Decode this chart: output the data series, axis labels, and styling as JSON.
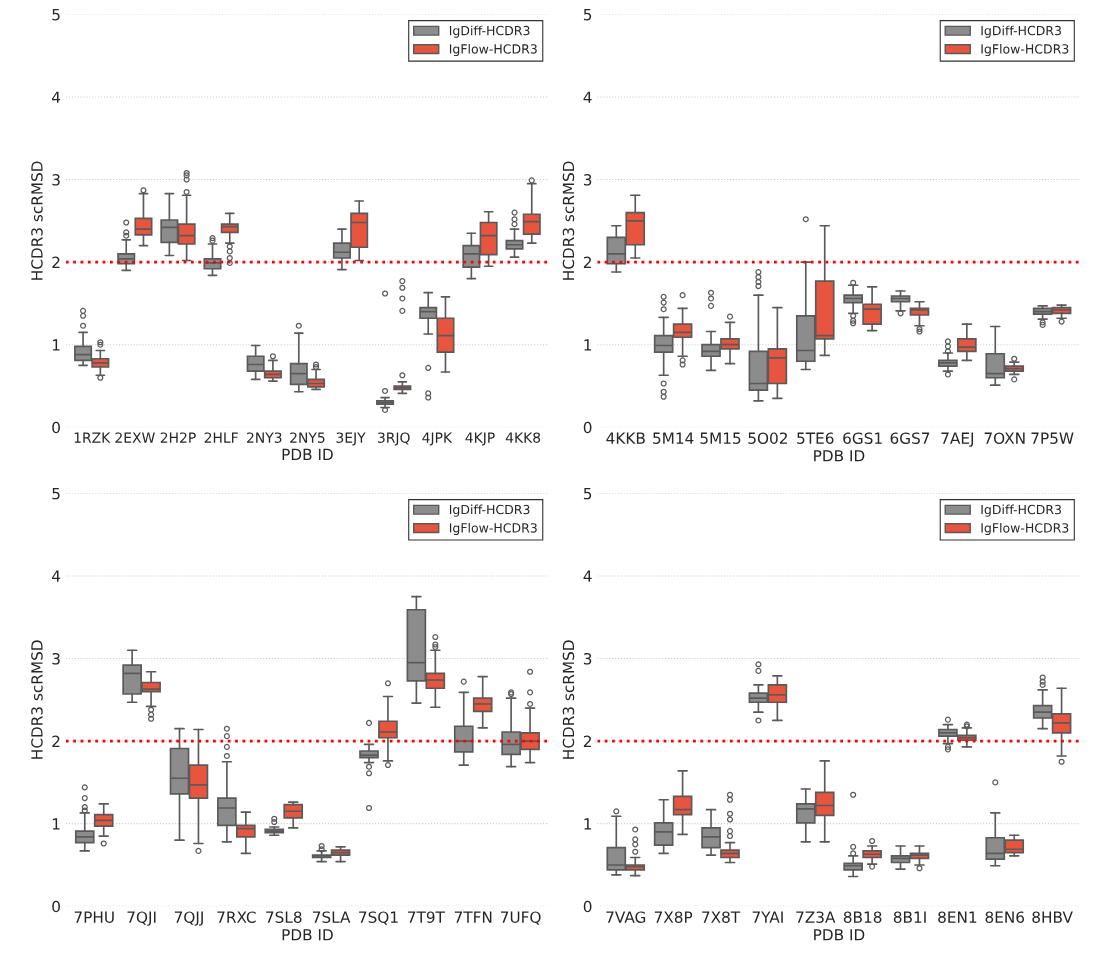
{
  "chart_data": [
    {
      "type": "box",
      "xlabel": "PDB ID",
      "ylabel": "HCDR3 scRMSD",
      "ylim": [
        0,
        5
      ],
      "yticks": [
        0,
        1,
        2,
        3,
        4,
        5
      ],
      "grid": "y",
      "legend": "top right",
      "ref_lines": [
        {
          "axis": "y",
          "value": 2,
          "color": "#ff0000",
          "line_style": "dotted"
        }
      ],
      "categories": [
        "1RZK",
        "2EXW",
        "2H2P",
        "2HLF",
        "2NY3",
        "2NY5",
        "3EJY",
        "3RJQ",
        "4JPK",
        "4KJP",
        "4KK8"
      ],
      "series": [
        {
          "name": "IgDiff-HCDR3",
          "color": "#8c8c8c",
          "boxes": [
            {
              "low": 0.75,
              "q1": 0.81,
              "median": 0.88,
              "q3": 0.98,
              "high": 1.15,
              "outliers": [
                1.41,
                1.35,
                1.23
              ]
            },
            {
              "low": 1.9,
              "q1": 1.98,
              "median": 2.04,
              "q3": 2.1,
              "high": 2.27,
              "outliers": [
                2.48,
                2.36,
                2.32
              ]
            },
            {
              "low": 2.08,
              "q1": 2.24,
              "median": 2.42,
              "q3": 2.51,
              "high": 2.83
            },
            {
              "low": 1.84,
              "q1": 1.92,
              "median": 1.99,
              "q3": 2.04,
              "high": 2.22,
              "outliers": [
                2.29,
                2.26
              ]
            },
            {
              "low": 0.58,
              "q1": 0.68,
              "median": 0.76,
              "q3": 0.86,
              "high": 0.99
            },
            {
              "low": 0.43,
              "q1": 0.52,
              "median": 0.65,
              "q3": 0.77,
              "high": 1.14,
              "outliers": [
                1.23
              ]
            },
            {
              "low": 1.91,
              "q1": 2.05,
              "median": 2.12,
              "q3": 2.23,
              "high": 2.4
            },
            {
              "low": 0.24,
              "q1": 0.28,
              "median": 0.3,
              "q3": 0.32,
              "high": 0.36,
              "outliers": [
                1.62,
                0.44,
                0.21
              ]
            },
            {
              "low": 1.13,
              "q1": 1.32,
              "median": 1.4,
              "q3": 1.45,
              "high": 1.63,
              "outliers": [
                0.72,
                0.41,
                0.36
              ]
            },
            {
              "low": 1.8,
              "q1": 1.94,
              "median": 2.1,
              "q3": 2.2,
              "high": 2.35
            },
            {
              "low": 2.06,
              "q1": 2.16,
              "median": 2.21,
              "q3": 2.26,
              "high": 2.4,
              "outliers": [
                2.6,
                2.52,
                2.46
              ]
            }
          ]
        },
        {
          "name": "IgFlow-HCDR3",
          "color": "#e8553f",
          "boxes": [
            {
              "low": 0.63,
              "q1": 0.73,
              "median": 0.78,
              "q3": 0.83,
              "high": 0.93,
              "outliers": [
                1.03,
                1.0,
                0.6
              ]
            },
            {
              "low": 2.2,
              "q1": 2.33,
              "median": 2.4,
              "q3": 2.53,
              "high": 2.83,
              "outliers": [
                2.87
              ]
            },
            {
              "low": 2.02,
              "q1": 2.22,
              "median": 2.32,
              "q3": 2.46,
              "high": 2.81,
              "outliers": [
                3.08,
                3.05,
                3.0,
                2.85
              ]
            },
            {
              "low": 2.23,
              "q1": 2.36,
              "median": 2.43,
              "q3": 2.46,
              "high": 2.59,
              "outliers": [
                2.19,
                2.13,
                2.05,
                1.99
              ]
            },
            {
              "low": 0.56,
              "q1": 0.6,
              "median": 0.64,
              "q3": 0.68,
              "high": 0.81,
              "outliers": [
                0.86
              ]
            },
            {
              "low": 0.46,
              "q1": 0.49,
              "median": 0.53,
              "q3": 0.58,
              "high": 0.7,
              "outliers": [
                0.76,
                0.73
              ]
            },
            {
              "low": 2.02,
              "q1": 2.18,
              "median": 2.48,
              "q3": 2.59,
              "high": 2.74
            },
            {
              "low": 0.41,
              "q1": 0.46,
              "median": 0.48,
              "q3": 0.5,
              "high": 0.55,
              "outliers": [
                1.77,
                1.69,
                1.56,
                1.41,
                0.63
              ]
            },
            {
              "low": 0.67,
              "q1": 0.91,
              "median": 1.11,
              "q3": 1.32,
              "high": 1.58
            },
            {
              "low": 1.95,
              "q1": 2.09,
              "median": 2.32,
              "q3": 2.48,
              "high": 2.61
            },
            {
              "low": 2.23,
              "q1": 2.34,
              "median": 2.49,
              "q3": 2.58,
              "high": 2.95,
              "outliers": [
                2.99
              ]
            }
          ]
        }
      ]
    },
    {
      "type": "box",
      "xlabel": "PDB ID",
      "ylabel": "HCDR3 scRMSD",
      "ylim": [
        0,
        5
      ],
      "yticks": [
        0,
        1,
        2,
        3,
        4,
        5
      ],
      "grid": "y",
      "legend": "top right",
      "ref_lines": [
        {
          "axis": "y",
          "value": 2,
          "color": "#ff0000",
          "line_style": "dotted"
        }
      ],
      "categories": [
        "4KKB",
        "5M14",
        "5M15",
        "5O02",
        "5TE6",
        "6GS1",
        "6GS7",
        "7AEJ",
        "7OXN",
        "7P5W"
      ],
      "series": [
        {
          "name": "IgDiff-HCDR3",
          "color": "#8c8c8c",
          "boxes": [
            {
              "low": 1.88,
              "q1": 1.98,
              "median": 2.1,
              "q3": 2.3,
              "high": 2.44
            },
            {
              "low": 0.63,
              "q1": 0.91,
              "median": 0.99,
              "q3": 1.11,
              "high": 1.33,
              "outliers": [
                1.58,
                1.51,
                1.43,
                0.53,
                0.43,
                0.37
              ]
            },
            {
              "low": 0.69,
              "q1": 0.86,
              "median": 0.92,
              "q3": 1.0,
              "high": 1.16,
              "outliers": [
                1.63,
                1.56,
                1.47
              ]
            },
            {
              "low": 0.32,
              "q1": 0.45,
              "median": 0.53,
              "q3": 0.92,
              "high": 1.6,
              "outliers": [
                1.88,
                1.82,
                1.76,
                1.71
              ]
            },
            {
              "low": 0.7,
              "q1": 0.8,
              "median": 0.93,
              "q3": 1.35,
              "high": 2.0,
              "outliers": [
                2.52
              ]
            },
            {
              "low": 1.38,
              "q1": 1.51,
              "median": 1.56,
              "q3": 1.6,
              "high": 1.72,
              "outliers": [
                1.75,
                1.35,
                1.29,
                1.26
              ]
            },
            {
              "low": 1.41,
              "q1": 1.52,
              "median": 1.56,
              "q3": 1.59,
              "high": 1.65,
              "outliers": [
                1.38
              ]
            },
            {
              "low": 0.68,
              "q1": 0.74,
              "median": 0.78,
              "q3": 0.81,
              "high": 0.9,
              "outliers": [
                1.04,
                0.98,
                0.92,
                0.64
              ]
            },
            {
              "low": 0.51,
              "q1": 0.6,
              "median": 0.65,
              "q3": 0.89,
              "high": 1.22
            },
            {
              "low": 1.31,
              "q1": 1.37,
              "median": 1.4,
              "q3": 1.44,
              "high": 1.47,
              "outliers": [
                1.27,
                1.24
              ]
            }
          ]
        },
        {
          "name": "IgFlow-HCDR3",
          "color": "#e8553f",
          "boxes": [
            {
              "low": 2.05,
              "q1": 2.21,
              "median": 2.5,
              "q3": 2.6,
              "high": 2.81
            },
            {
              "low": 0.86,
              "q1": 1.09,
              "median": 1.15,
              "q3": 1.25,
              "high": 1.44,
              "outliers": [
                1.6,
                0.81,
                0.76
              ]
            },
            {
              "low": 0.77,
              "q1": 0.95,
              "median": 1.0,
              "q3": 1.07,
              "high": 1.27,
              "outliers": [
                1.34
              ]
            },
            {
              "low": 0.35,
              "q1": 0.53,
              "median": 0.84,
              "q3": 0.95,
              "high": 1.45
            },
            {
              "low": 0.87,
              "q1": 1.07,
              "median": 1.11,
              "q3": 1.77,
              "high": 2.44
            },
            {
              "low": 1.17,
              "q1": 1.25,
              "median": 1.43,
              "q3": 1.49,
              "high": 1.7
            },
            {
              "low": 1.23,
              "q1": 1.36,
              "median": 1.42,
              "q3": 1.44,
              "high": 1.52,
              "outliers": [
                1.19,
                1.16
              ]
            },
            {
              "low": 0.81,
              "q1": 0.92,
              "median": 0.97,
              "q3": 1.07,
              "high": 1.25
            },
            {
              "low": 0.64,
              "q1": 0.68,
              "median": 0.71,
              "q3": 0.74,
              "high": 0.79,
              "outliers": [
                0.83,
                0.58
              ]
            },
            {
              "low": 1.32,
              "q1": 1.38,
              "median": 1.42,
              "q3": 1.45,
              "high": 1.48,
              "outliers": [
                1.28
              ]
            }
          ]
        }
      ]
    },
    {
      "type": "box",
      "xlabel": "PDB ID",
      "ylabel": "HCDR3 scRMSD",
      "ylim": [
        0,
        5
      ],
      "yticks": [
        0,
        1,
        2,
        3,
        4,
        5
      ],
      "grid": "y",
      "legend": "top right",
      "ref_lines": [
        {
          "axis": "y",
          "value": 2,
          "color": "#ff0000",
          "line_style": "dotted"
        }
      ],
      "categories": [
        "7PHU",
        "7QJI",
        "7QJJ",
        "7RXC",
        "7SL8",
        "7SLA",
        "7SQ1",
        "7T9T",
        "7TFN",
        "7UFQ"
      ],
      "series": [
        {
          "name": "IgDiff-HCDR3",
          "color": "#8c8c8c",
          "boxes": [
            {
              "low": 0.67,
              "q1": 0.77,
              "median": 0.84,
              "q3": 0.91,
              "high": 1.13,
              "outliers": [
                1.44,
                1.31,
                1.2,
                1.16
              ]
            },
            {
              "low": 2.47,
              "q1": 2.57,
              "median": 2.82,
              "q3": 2.92,
              "high": 3.1
            },
            {
              "low": 0.8,
              "q1": 1.36,
              "median": 1.55,
              "q3": 1.91,
              "high": 2.15
            },
            {
              "low": 0.78,
              "q1": 0.98,
              "median": 1.19,
              "q3": 1.31,
              "high": 1.75,
              "outliers": [
                2.15,
                2.06,
                1.93,
                1.82
              ]
            },
            {
              "low": 0.86,
              "q1": 0.89,
              "median": 0.91,
              "q3": 0.93,
              "high": 0.96,
              "outliers": [
                1.06,
                1.02
              ]
            },
            {
              "low": 0.54,
              "q1": 0.59,
              "median": 0.61,
              "q3": 0.62,
              "high": 0.67,
              "outliers": [
                0.73,
                0.69
              ]
            },
            {
              "low": 1.74,
              "q1": 1.8,
              "median": 1.83,
              "q3": 1.88,
              "high": 1.96,
              "outliers": [
                2.22,
                1.69,
                1.61,
                1.19
              ]
            },
            {
              "low": 2.46,
              "q1": 2.73,
              "median": 2.95,
              "q3": 3.59,
              "high": 3.75
            },
            {
              "low": 1.71,
              "q1": 1.87,
              "median": 2.0,
              "q3": 2.18,
              "high": 2.59,
              "outliers": [
                2.72
              ]
            },
            {
              "low": 1.69,
              "q1": 1.84,
              "median": 1.96,
              "q3": 2.11,
              "high": 2.52,
              "outliers": [
                2.59,
                2.57
              ]
            }
          ]
        },
        {
          "name": "IgFlow-HCDR3",
          "color": "#e8553f",
          "boxes": [
            {
              "low": 0.85,
              "q1": 0.97,
              "median": 1.04,
              "q3": 1.11,
              "high": 1.24,
              "outliers": [
                0.76
              ]
            },
            {
              "low": 2.42,
              "q1": 2.6,
              "median": 2.63,
              "q3": 2.71,
              "high": 2.84,
              "outliers": [
                2.38,
                2.32,
                2.27
              ]
            },
            {
              "low": 0.76,
              "q1": 1.31,
              "median": 1.47,
              "q3": 1.71,
              "high": 2.14,
              "outliers": [
                0.67
              ]
            },
            {
              "low": 0.64,
              "q1": 0.84,
              "median": 0.94,
              "q3": 0.98,
              "high": 1.14
            },
            {
              "low": 0.95,
              "q1": 1.07,
              "median": 1.15,
              "q3": 1.23,
              "high": 1.26
            },
            {
              "low": 0.54,
              "q1": 0.62,
              "median": 0.65,
              "q3": 0.68,
              "high": 0.72
            },
            {
              "low": 1.76,
              "q1": 2.04,
              "median": 2.11,
              "q3": 2.24,
              "high": 2.54,
              "outliers": [
                2.7,
                1.71
              ]
            },
            {
              "low": 2.41,
              "q1": 2.64,
              "median": 2.74,
              "q3": 2.82,
              "high": 3.1,
              "outliers": [
                3.26,
                3.17,
                3.14
              ]
            },
            {
              "low": 2.16,
              "q1": 2.36,
              "median": 2.45,
              "q3": 2.52,
              "high": 2.78
            },
            {
              "low": 1.74,
              "q1": 1.9,
              "median": 2.0,
              "q3": 2.1,
              "high": 2.4,
              "outliers": [
                2.84,
                2.59,
                2.45
              ]
            }
          ]
        }
      ]
    },
    {
      "type": "box",
      "xlabel": "PDB ID",
      "ylabel": "HCDR3 scRMSD",
      "ylim": [
        0,
        5
      ],
      "yticks": [
        0,
        1,
        2,
        3,
        4,
        5
      ],
      "grid": "y",
      "legend": "top right",
      "ref_lines": [
        {
          "axis": "y",
          "value": 2,
          "color": "#ff0000",
          "line_style": "dotted"
        }
      ],
      "categories": [
        "7VAG",
        "7X8P",
        "7X8T",
        "7YAI",
        "7Z3A",
        "8B18",
        "8B1I",
        "8EN1",
        "8EN6",
        "8HBV"
      ],
      "series": [
        {
          "name": "IgDiff-HCDR3",
          "color": "#8c8c8c",
          "boxes": [
            {
              "low": 0.38,
              "q1": 0.44,
              "median": 0.5,
              "q3": 0.71,
              "high": 1.09,
              "outliers": [
                1.15
              ]
            },
            {
              "low": 0.64,
              "q1": 0.74,
              "median": 0.9,
              "q3": 1.01,
              "high": 1.29
            },
            {
              "low": 0.62,
              "q1": 0.71,
              "median": 0.84,
              "q3": 0.95,
              "high": 1.17
            },
            {
              "low": 2.35,
              "q1": 2.47,
              "median": 2.52,
              "q3": 2.58,
              "high": 2.68,
              "outliers": [
                2.93,
                2.85,
                2.25
              ]
            },
            {
              "low": 0.78,
              "q1": 1.01,
              "median": 1.18,
              "q3": 1.24,
              "high": 1.42
            },
            {
              "low": 0.36,
              "q1": 0.44,
              "median": 0.49,
              "q3": 0.52,
              "high": 0.61,
              "outliers": [
                1.35,
                0.72,
                0.64
              ]
            },
            {
              "low": 0.45,
              "q1": 0.53,
              "median": 0.58,
              "q3": 0.61,
              "high": 0.73
            },
            {
              "low": 1.97,
              "q1": 2.06,
              "median": 2.1,
              "q3": 2.14,
              "high": 2.2,
              "outliers": [
                2.26,
                1.93,
                1.9
              ]
            },
            {
              "low": 0.49,
              "q1": 0.57,
              "median": 0.64,
              "q3": 0.83,
              "high": 1.13,
              "outliers": [
                1.5
              ]
            },
            {
              "low": 2.15,
              "q1": 2.28,
              "median": 2.35,
              "q3": 2.43,
              "high": 2.62,
              "outliers": [
                2.77,
                2.72,
                2.68
              ]
            }
          ]
        },
        {
          "name": "IgFlow-HCDR3",
          "color": "#e8553f",
          "boxes": [
            {
              "low": 0.37,
              "q1": 0.44,
              "median": 0.48,
              "q3": 0.5,
              "high": 0.59,
              "outliers": [
                0.93,
                0.81,
                0.75,
                0.66
              ]
            },
            {
              "low": 0.87,
              "q1": 1.11,
              "median": 1.17,
              "q3": 1.33,
              "high": 1.64
            },
            {
              "low": 0.53,
              "q1": 0.59,
              "median": 0.64,
              "q3": 0.68,
              "high": 0.77,
              "outliers": [
                1.35,
                1.29,
                1.12,
                1.05,
                0.91,
                0.85
              ]
            },
            {
              "low": 2.25,
              "q1": 2.47,
              "median": 2.56,
              "q3": 2.68,
              "high": 2.79
            },
            {
              "low": 0.78,
              "q1": 1.1,
              "median": 1.22,
              "q3": 1.38,
              "high": 1.76
            },
            {
              "low": 0.51,
              "q1": 0.59,
              "median": 0.63,
              "q3": 0.67,
              "high": 0.73,
              "outliers": [
                0.79,
                0.48
              ]
            },
            {
              "low": 0.5,
              "q1": 0.58,
              "median": 0.62,
              "q3": 0.64,
              "high": 0.73,
              "outliers": [
                0.46
              ]
            },
            {
              "low": 1.93,
              "q1": 2.01,
              "median": 2.04,
              "q3": 2.07,
              "high": 2.16,
              "outliers": [
                2.2,
                2.18
              ]
            },
            {
              "low": 0.61,
              "q1": 0.65,
              "median": 0.69,
              "q3": 0.8,
              "high": 0.86
            },
            {
              "low": 1.82,
              "q1": 2.1,
              "median": 2.22,
              "q3": 2.33,
              "high": 2.64,
              "outliers": [
                1.75
              ]
            }
          ]
        }
      ]
    }
  ]
}
